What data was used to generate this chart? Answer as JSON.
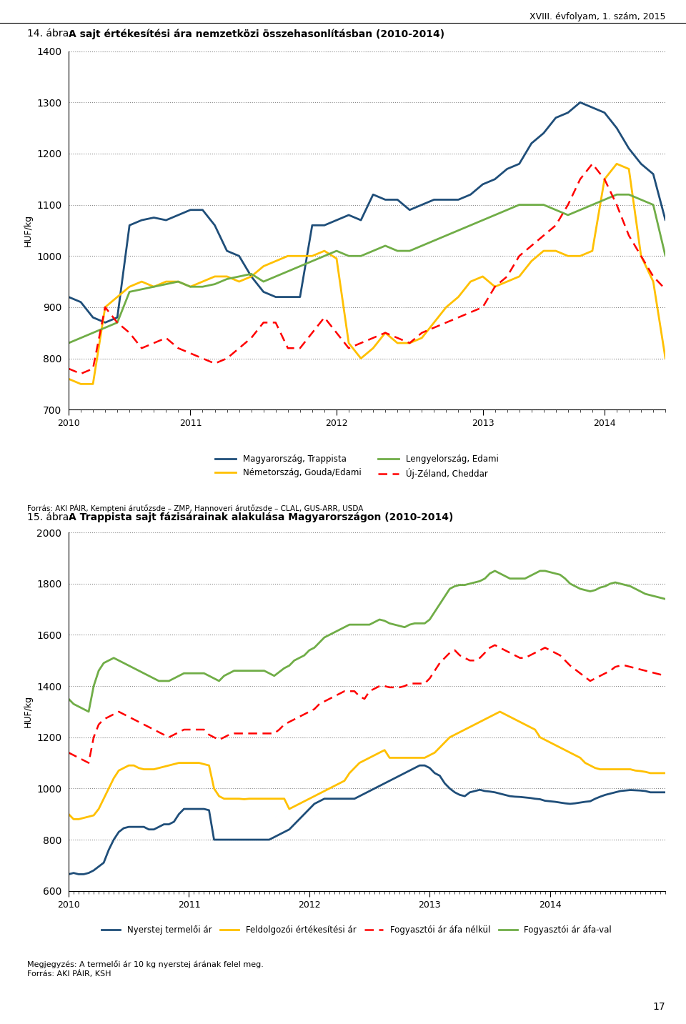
{
  "page_header": "XVIII. évfolyam, 1. szám, 2015",
  "page_number": "17",
  "chart1_title_prefix": "14. ábra: ",
  "chart1_title_bold": "A sajt értékesítési ára nemzetközi összehasonlításban (2010-2014)",
  "chart1_ylabel": "HUF/kg",
  "chart1_ylim": [
    700,
    1400
  ],
  "chart1_yticks": [
    700,
    800,
    900,
    1000,
    1100,
    1200,
    1300,
    1400
  ],
  "chart1_source": "Forrás: AKI PÁIR, Kempteni árutőzsde – ZMP, Hannoveri árutőzsde – CLAL, GUS-ARR, USDA",
  "chart2_title_prefix": "15. ábra: ",
  "chart2_title_bold": "A Trappista sajt fázisárainak alakulása Magyarországon (2010-2014)",
  "chart2_ylabel": "HUF/kg",
  "chart2_ylim": [
    600,
    2000
  ],
  "chart2_yticks": [
    600,
    800,
    1000,
    1200,
    1400,
    1600,
    1800,
    2000
  ],
  "chart2_note": "Megjegyzés: A termelői ár 10 kg nyerstej árának felel meg.",
  "chart2_source": "Forrás: AKI PÁIR, KSH",
  "colors": {
    "blue": "#1F4E79",
    "orange": "#FFC000",
    "green": "#70AD47",
    "red_dash": "#FF0000"
  },
  "chart1_magyarorszag": [
    920,
    910,
    880,
    870,
    880,
    1060,
    1070,
    1075,
    1070,
    1080,
    1090,
    1090,
    1060,
    1010,
    1000,
    960,
    930,
    920,
    920,
    920,
    1060,
    1060,
    1070,
    1080,
    1070,
    1120,
    1110,
    1110,
    1090,
    1100,
    1110,
    1110,
    1110,
    1120,
    1140,
    1150,
    1170,
    1180,
    1220,
    1240,
    1270,
    1280,
    1300,
    1290,
    1280,
    1250,
    1210,
    1180,
    1160,
    1070
  ],
  "chart1_nemetorszag": [
    760,
    750,
    750,
    900,
    920,
    940,
    950,
    940,
    950,
    950,
    940,
    950,
    960,
    960,
    950,
    960,
    980,
    990,
    1000,
    1000,
    1000,
    1010,
    995,
    830,
    800,
    820,
    850,
    830,
    830,
    840,
    870,
    900,
    920,
    950,
    960,
    940,
    950,
    960,
    990,
    1010,
    1010,
    1000,
    1000,
    1010,
    1150,
    1180,
    1170,
    1000,
    950,
    800
  ],
  "chart1_lengyelorszag": [
    830,
    840,
    850,
    860,
    870,
    930,
    935,
    940,
    945,
    950,
    940,
    940,
    945,
    955,
    960,
    965,
    950,
    960,
    970,
    980,
    990,
    1000,
    1010,
    1000,
    1000,
    1010,
    1020,
    1010,
    1010,
    1020,
    1030,
    1040,
    1050,
    1060,
    1070,
    1080,
    1090,
    1100,
    1100,
    1100,
    1090,
    1080,
    1090,
    1100,
    1110,
    1120,
    1120,
    1110,
    1100,
    1000
  ],
  "chart1_ujzeland": [
    780,
    770,
    780,
    900,
    870,
    850,
    820,
    830,
    840,
    820,
    810,
    800,
    790,
    800,
    820,
    840,
    870,
    870,
    820,
    820,
    850,
    880,
    850,
    820,
    830,
    840,
    850,
    840,
    830,
    850,
    860,
    870,
    880,
    890,
    900,
    940,
    960,
    1000,
    1020,
    1040,
    1060,
    1100,
    1150,
    1180,
    1150,
    1100,
    1040,
    1000,
    960,
    935
  ],
  "chart2_nyerstej": [
    665,
    670,
    665,
    665,
    670,
    680,
    695,
    710,
    760,
    800,
    830,
    845,
    850,
    850,
    850,
    850,
    840,
    840,
    850,
    860,
    860,
    870,
    900,
    920,
    920,
    920,
    920,
    920,
    915,
    800,
    800,
    800,
    800,
    800,
    800,
    800,
    800,
    800,
    800,
    800,
    800,
    810,
    820,
    830,
    840,
    860,
    880,
    900,
    920,
    940,
    950,
    960,
    960,
    960,
    960,
    960,
    960,
    960,
    970,
    980,
    990,
    1000,
    1010,
    1020,
    1030,
    1040,
    1050,
    1060,
    1070,
    1080,
    1090,
    1090,
    1080,
    1060,
    1050,
    1020,
    1000,
    985,
    975,
    970,
    985,
    990,
    995,
    990,
    988,
    985,
    980,
    975,
    970,
    968,
    967,
    965,
    963,
    960,
    958,
    952,
    950,
    948,
    945,
    942,
    940,
    942,
    945,
    948,
    950,
    960,
    968,
    975,
    980,
    985,
    990,
    992,
    994,
    993,
    992,
    990,
    985
  ],
  "chart2_feldolgozoi": [
    900,
    880,
    880,
    885,
    890,
    895,
    920,
    960,
    1000,
    1040,
    1070,
    1080,
    1090,
    1090,
    1080,
    1075,
    1075,
    1075,
    1080,
    1085,
    1090,
    1095,
    1100,
    1100,
    1100,
    1100,
    1100,
    1095,
    1090,
    1000,
    970,
    960,
    960,
    960,
    960,
    958,
    960,
    960,
    960,
    960,
    960,
    960,
    960,
    960,
    920,
    930,
    940,
    950,
    960,
    970,
    980,
    990,
    1000,
    1010,
    1020,
    1030,
    1060,
    1080,
    1100,
    1110,
    1120,
    1130,
    1140,
    1150,
    1120,
    1120,
    1120,
    1120,
    1120,
    1120,
    1120,
    1120,
    1130,
    1140,
    1160,
    1180,
    1200,
    1210,
    1220,
    1230,
    1240,
    1250,
    1260,
    1270,
    1280,
    1290,
    1300,
    1290,
    1280,
    1270,
    1260,
    1250,
    1240,
    1230,
    1200,
    1190,
    1180,
    1170,
    1160,
    1150,
    1140,
    1130,
    1120,
    1100,
    1090,
    1080,
    1075,
    1075,
    1075,
    1075,
    1075,
    1075,
    1075,
    1070,
    1068,
    1065,
    1060,
    1060
  ],
  "chart2_fogyasztoi_neta": [
    1140,
    1130,
    1120,
    1110,
    1100,
    1200,
    1250,
    1270,
    1280,
    1290,
    1300,
    1290,
    1280,
    1270,
    1260,
    1250,
    1240,
    1230,
    1220,
    1210,
    1200,
    1210,
    1220,
    1230,
    1230,
    1230,
    1230,
    1230,
    1210,
    1200,
    1190,
    1200,
    1210,
    1215,
    1215,
    1215,
    1215,
    1215,
    1215,
    1215,
    1215,
    1215,
    1230,
    1250,
    1260,
    1270,
    1280,
    1290,
    1300,
    1310,
    1330,
    1340,
    1350,
    1360,
    1370,
    1380,
    1380,
    1380,
    1360,
    1350,
    1380,
    1390,
    1400,
    1400,
    1395,
    1395,
    1395,
    1400,
    1410,
    1410,
    1410,
    1410,
    1430,
    1460,
    1490,
    1510,
    1530,
    1540,
    1520,
    1510,
    1500,
    1500,
    1510,
    1530,
    1550,
    1560,
    1550,
    1540,
    1530,
    1520,
    1510,
    1510,
    1520,
    1530,
    1540,
    1550,
    1540,
    1530,
    1520,
    1500,
    1480,
    1465,
    1450,
    1435,
    1420,
    1430,
    1440,
    1450,
    1460,
    1475,
    1480,
    1480,
    1475,
    1470,
    1465,
    1460,
    1455,
    1450,
    1445,
    1440
  ],
  "chart2_fogyasztoi_afa": [
    1350,
    1330,
    1320,
    1310,
    1300,
    1400,
    1460,
    1490,
    1500,
    1510,
    1500,
    1490,
    1480,
    1470,
    1460,
    1450,
    1440,
    1430,
    1420,
    1420,
    1420,
    1430,
    1440,
    1450,
    1450,
    1450,
    1450,
    1450,
    1440,
    1430,
    1420,
    1440,
    1450,
    1460,
    1460,
    1460,
    1460,
    1460,
    1460,
    1460,
    1450,
    1440,
    1455,
    1470,
    1480,
    1500,
    1510,
    1520,
    1540,
    1550,
    1570,
    1590,
    1600,
    1610,
    1620,
    1630,
    1640,
    1640,
    1640,
    1640,
    1640,
    1650,
    1660,
    1655,
    1645,
    1640,
    1635,
    1630,
    1640,
    1645,
    1645,
    1645,
    1660,
    1690,
    1720,
    1750,
    1780,
    1790,
    1795,
    1795,
    1800,
    1805,
    1810,
    1820,
    1840,
    1850,
    1840,
    1830,
    1820,
    1820,
    1820,
    1820,
    1830,
    1840,
    1850,
    1850,
    1845,
    1840,
    1835,
    1820,
    1800,
    1790,
    1780,
    1775,
    1770,
    1775,
    1785,
    1790,
    1800,
    1805,
    1800,
    1795,
    1790,
    1780,
    1770,
    1760,
    1755,
    1750,
    1745,
    1740
  ]
}
